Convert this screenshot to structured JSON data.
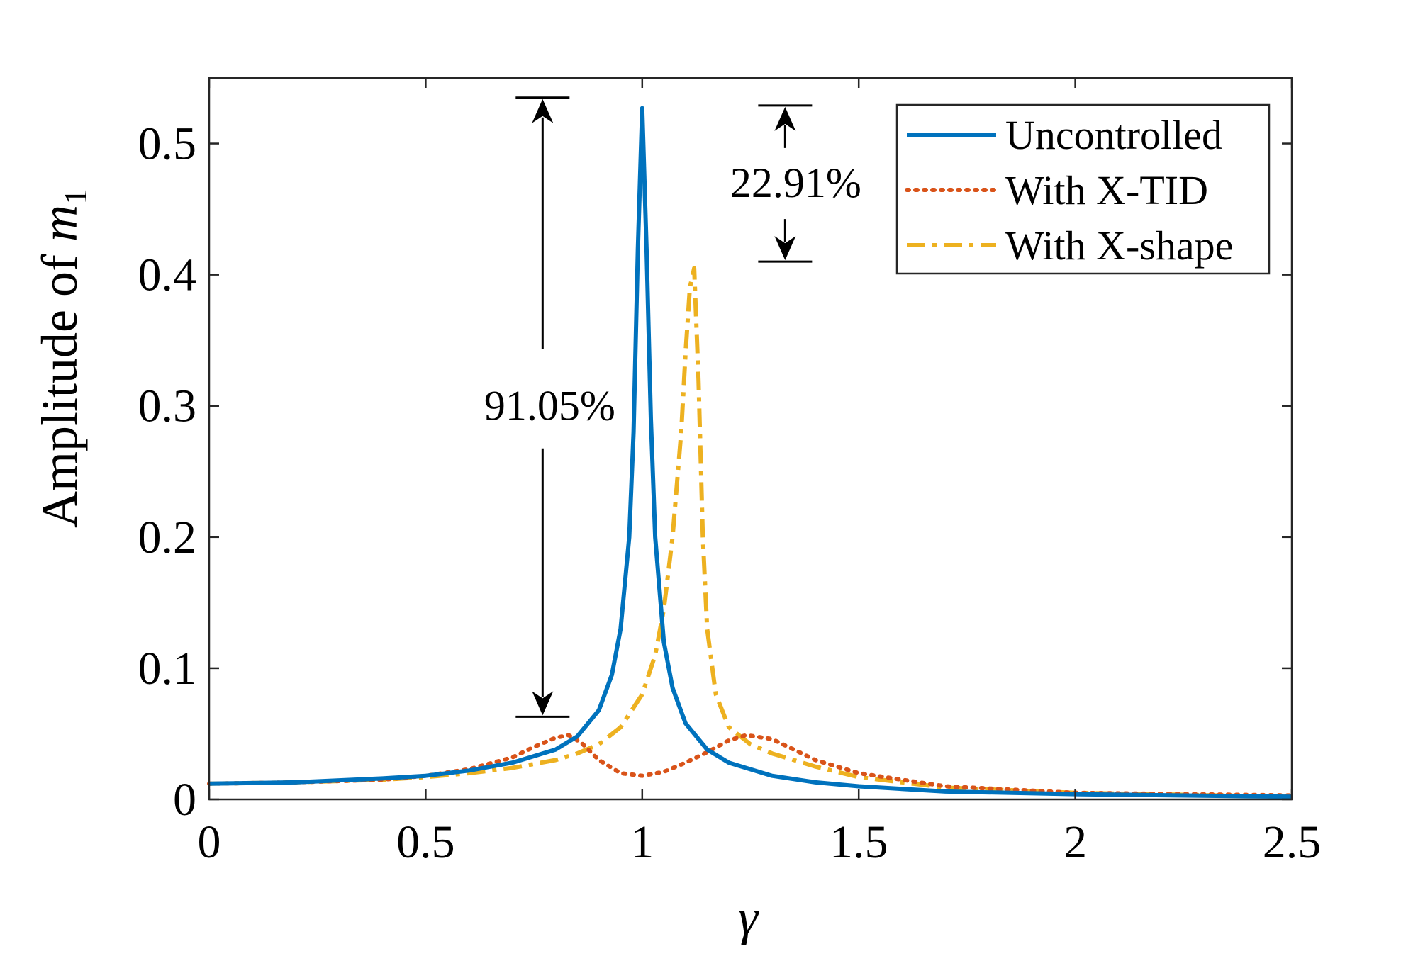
{
  "chart_data": {
    "type": "line",
    "xlabel": "γ",
    "ylabel": "Amplitude of ",
    "ylabel_var": "m",
    "ylabel_sub": "1",
    "xlim": [
      0,
      2.5
    ],
    "ylim": [
      0,
      0.55
    ],
    "xticks": [
      0,
      0.5,
      1,
      1.5,
      2,
      2.5
    ],
    "xtick_labels": [
      "0",
      "0.5",
      "1",
      "1.5",
      "2",
      "2.5"
    ],
    "yticks": [
      0,
      0.1,
      0.2,
      0.3,
      0.4,
      0.5
    ],
    "ytick_labels": [
      "0",
      "0.1",
      "0.2",
      "0.3",
      "0.4",
      "0.5"
    ],
    "grid": false,
    "legend_position": "top-right",
    "series": [
      {
        "name": "Uncontrolled",
        "color": "#0072BD",
        "style": "solid",
        "x": [
          0,
          0.2,
          0.4,
          0.5,
          0.6,
          0.7,
          0.8,
          0.85,
          0.9,
          0.93,
          0.95,
          0.97,
          0.98,
          0.99,
          1.0,
          1.01,
          1.02,
          1.03,
          1.05,
          1.07,
          1.1,
          1.15,
          1.2,
          1.3,
          1.4,
          1.5,
          1.7,
          2.0,
          2.5
        ],
        "y": [
          0.012,
          0.013,
          0.016,
          0.018,
          0.022,
          0.028,
          0.038,
          0.048,
          0.068,
          0.095,
          0.13,
          0.2,
          0.28,
          0.42,
          0.527,
          0.42,
          0.29,
          0.2,
          0.12,
          0.085,
          0.058,
          0.038,
          0.028,
          0.018,
          0.013,
          0.01,
          0.006,
          0.004,
          0.002
        ]
      },
      {
        "name": "With X-TID",
        "color": "#D95319",
        "style": "dotted",
        "x": [
          0,
          0.2,
          0.4,
          0.5,
          0.6,
          0.7,
          0.75,
          0.8,
          0.83,
          0.86,
          0.9,
          0.95,
          1.0,
          1.05,
          1.1,
          1.15,
          1.2,
          1.24,
          1.3,
          1.35,
          1.4,
          1.5,
          1.7,
          2.0,
          2.5
        ],
        "y": [
          0.012,
          0.013,
          0.015,
          0.018,
          0.023,
          0.032,
          0.04,
          0.047,
          0.049,
          0.043,
          0.03,
          0.02,
          0.018,
          0.021,
          0.028,
          0.036,
          0.045,
          0.049,
          0.046,
          0.038,
          0.03,
          0.02,
          0.01,
          0.005,
          0.003
        ]
      },
      {
        "name": "With X-shape",
        "color": "#EDB120",
        "style": "dashdot",
        "x": [
          0,
          0.2,
          0.4,
          0.5,
          0.6,
          0.7,
          0.8,
          0.85,
          0.9,
          0.95,
          1.0,
          1.03,
          1.05,
          1.07,
          1.09,
          1.1,
          1.11,
          1.12,
          1.13,
          1.14,
          1.15,
          1.17,
          1.2,
          1.25,
          1.3,
          1.4,
          1.5,
          1.7,
          2.0,
          2.5
        ],
        "y": [
          0.012,
          0.013,
          0.015,
          0.017,
          0.02,
          0.024,
          0.03,
          0.035,
          0.042,
          0.055,
          0.08,
          0.11,
          0.145,
          0.2,
          0.28,
          0.34,
          0.39,
          0.405,
          0.32,
          0.2,
          0.13,
          0.08,
          0.055,
          0.042,
          0.035,
          0.025,
          0.017,
          0.009,
          0.005,
          0.002
        ]
      }
    ],
    "annotations": [
      {
        "text": "91.05%",
        "x": 0.77,
        "y_top": 0.535,
        "y_bottom": 0.063,
        "label_y": 0.3
      },
      {
        "text": "22.91%",
        "x": 1.33,
        "y_top": 0.529,
        "y_bottom": 0.41,
        "label_y": 0.47
      }
    ]
  }
}
